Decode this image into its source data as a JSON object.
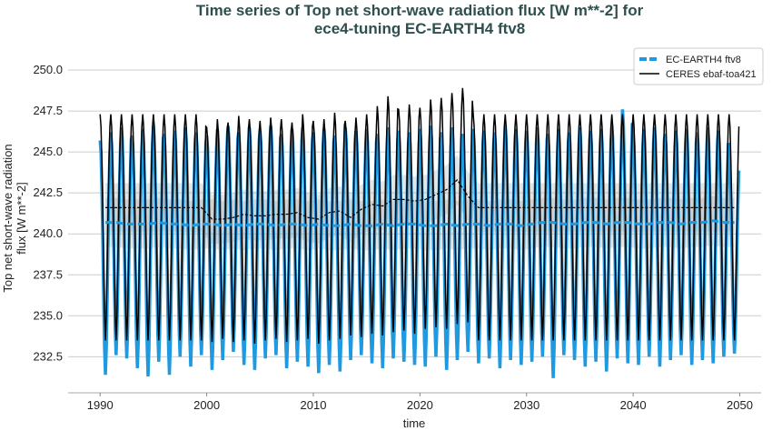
{
  "chart_data": {
    "type": "line",
    "title": [
      "Time series of Top net short-wave radiation flux [W m**-2] for",
      "ece4-tuning EC-EARTH4 ftv8"
    ],
    "xlabel": "time",
    "ylabel": [
      "Top net short-wave radiation",
      "flux [W m**-2]"
    ],
    "xlim": [
      1987,
      2052
    ],
    "ylim": [
      230.3,
      251.5
    ],
    "xticks": [
      1990,
      2000,
      2010,
      2020,
      2030,
      2040,
      2050
    ],
    "yticks": [
      "232.5",
      "235.0",
      "237.5",
      "240.0",
      "242.5",
      "245.0",
      "247.5",
      "250.0"
    ],
    "grid": "horizontal",
    "legend_position": "top-right",
    "years_start": 1990,
    "series": [
      {
        "name": "EC-EARTH4 ftv8",
        "color": "#1f9ae0",
        "style": "monthly + dashed running mean",
        "annual_max": [
          245.7,
          246.2,
          246.5,
          246.0,
          246.4,
          246.6,
          246.1,
          246.3,
          246.5,
          246.2,
          246.0,
          246.4,
          246.6,
          246.2,
          246.5,
          246.3,
          246.6,
          246.1,
          246.4,
          246.5,
          246.2,
          246.4,
          246.0,
          246.5,
          246.3,
          246.4,
          246.1,
          246.5,
          246.3,
          246.2,
          246.4,
          246.6,
          246.2,
          246.5,
          246.1,
          246.4,
          246.3,
          246.2,
          246.6,
          246.4,
          246.3,
          246.5,
          246.1,
          246.4,
          246.2,
          246.5,
          246.3,
          246.4,
          246.6,
          247.6,
          246.2,
          246.4,
          246.5,
          246.1,
          246.3,
          246.4,
          246.2,
          246.5,
          246.3,
          244.5
        ],
        "annual_min": [
          231.4,
          232.6,
          232.4,
          231.8,
          231.3,
          232.2,
          231.4,
          232.5,
          231.9,
          232.6,
          231.7,
          232.3,
          232.8,
          232.0,
          231.7,
          232.4,
          232.6,
          231.8,
          232.2,
          231.9,
          231.5,
          232.0,
          231.6,
          232.3,
          232.6,
          232.1,
          231.8,
          232.4,
          232.2,
          232.0,
          231.9,
          232.5,
          231.7,
          232.3,
          232.8,
          232.1,
          232.4,
          231.8,
          232.3,
          232.0,
          232.2,
          232.5,
          231.2,
          232.6,
          232.3,
          231.9,
          232.2,
          231.6,
          232.4,
          232.1,
          232.0,
          232.5,
          231.9,
          232.3,
          232.6,
          232.0,
          232.3,
          232.1,
          232.5,
          232.7
        ],
        "running_mean": [
          240.7,
          240.7,
          240.6,
          240.6,
          240.6,
          240.7,
          240.6,
          240.6,
          240.5,
          240.6,
          240.6,
          240.5,
          240.6,
          240.5,
          240.6,
          240.6,
          240.5,
          240.6,
          240.6,
          240.5,
          240.6,
          240.5,
          240.5,
          240.6,
          240.5,
          240.5,
          240.6,
          240.5,
          240.6,
          240.6,
          240.5,
          240.5,
          240.6,
          240.5,
          240.6,
          240.6,
          240.5,
          240.6,
          240.6,
          240.5,
          240.6,
          240.7,
          240.7,
          240.6,
          240.6,
          240.7,
          240.7,
          240.6,
          240.7,
          240.7,
          240.6,
          240.6,
          240.7,
          240.7,
          240.6,
          240.7,
          240.7,
          240.8,
          240.7,
          240.7
        ]
      },
      {
        "name": "CERES ebaf-toa421",
        "color": "#000000",
        "style": "monthly + dashed running mean",
        "annual_max": [
          247.3,
          247.3,
          247.3,
          247.3,
          247.3,
          247.3,
          247.3,
          247.3,
          247.3,
          247.3,
          246.5,
          247.0,
          246.8,
          247.2,
          247.0,
          246.9,
          247.1,
          247.0,
          246.8,
          247.3,
          246.9,
          247.0,
          247.4,
          246.9,
          247.1,
          247.3,
          247.8,
          248.4,
          247.6,
          247.9,
          247.7,
          248.2,
          248.3,
          248.6,
          248.9,
          247.3,
          247.3,
          247.3,
          247.3,
          247.3,
          247.3,
          247.3,
          247.3,
          247.3,
          247.3,
          247.3,
          247.3,
          247.3,
          247.3,
          247.3,
          247.3,
          247.3,
          247.3,
          247.3,
          247.3,
          247.3,
          247.3,
          247.3,
          247.3,
          247.3
        ],
        "annual_min": [
          233.5,
          233.5,
          233.5,
          233.5,
          233.5,
          233.5,
          233.5,
          233.5,
          233.5,
          233.5,
          233.4,
          233.6,
          233.4,
          233.5,
          233.3,
          233.5,
          233.6,
          233.4,
          233.5,
          233.6,
          233.3,
          233.5,
          233.6,
          233.8,
          233.7,
          233.9,
          233.8,
          234.0,
          234.1,
          233.9,
          234.2,
          234.3,
          234.2,
          234.5,
          234.6,
          233.5,
          233.5,
          233.5,
          233.5,
          233.5,
          233.5,
          233.5,
          233.5,
          233.5,
          233.5,
          233.5,
          233.5,
          233.5,
          233.5,
          233.5,
          233.5,
          233.5,
          233.5,
          233.5,
          233.5,
          233.5,
          233.5,
          233.5,
          233.5,
          233.5
        ],
        "running_mean": [
          241.6,
          241.6,
          241.6,
          241.6,
          241.6,
          241.6,
          241.6,
          241.6,
          241.6,
          241.6,
          240.9,
          240.9,
          241.0,
          241.2,
          241.1,
          241.1,
          241.2,
          241.2,
          241.3,
          241.0,
          240.9,
          241.3,
          241.4,
          241.0,
          241.5,
          241.8,
          241.7,
          242.1,
          242.1,
          242.0,
          242.1,
          242.4,
          242.7,
          243.3,
          242.3,
          241.6,
          241.6,
          241.6,
          241.6,
          241.6,
          241.6,
          241.6,
          241.6,
          241.6,
          241.6,
          241.6,
          241.6,
          241.6,
          241.6,
          241.6,
          241.6,
          241.6,
          241.6,
          241.6,
          241.6,
          241.6,
          241.6,
          241.6,
          241.6,
          241.6
        ]
      }
    ]
  }
}
